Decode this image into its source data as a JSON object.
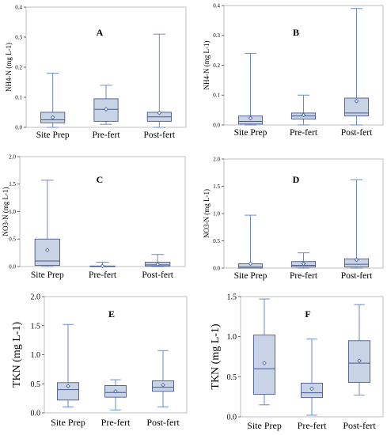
{
  "colors": {
    "box_fill": "#c9d3e6",
    "box_stroke": "#4a5a8a",
    "whisker": "#6a8ad0",
    "mean_marker": "#3a5ab0",
    "frame": "#bfbfbf",
    "text": "#000000"
  },
  "chart_data": [
    {
      "panel": "A",
      "type": "box",
      "ylabel": "NH4-N (mg L-1)",
      "categories": [
        "Site Prep",
        "Pre-fert",
        "Post-fert"
      ],
      "ylim": [
        0,
        0.4
      ],
      "yticks": [
        "0.0",
        "0.1",
        "0.2",
        "0.3",
        "0.4"
      ],
      "boxes": [
        {
          "min": 0.0,
          "q1": 0.015,
          "median": 0.025,
          "q3": 0.05,
          "max": 0.18,
          "mean": 0.033
        },
        {
          "min": 0.01,
          "q1": 0.02,
          "median": 0.06,
          "q3": 0.095,
          "max": 0.14,
          "mean": 0.06
        },
        {
          "min": 0.0,
          "q1": 0.02,
          "median": 0.035,
          "q3": 0.05,
          "max": 0.31,
          "mean": 0.048
        }
      ]
    },
    {
      "panel": "B",
      "type": "box",
      "ylabel": "NH4-N (mg L-1)",
      "categories": [
        "Site Prep",
        "Pre-fert",
        "Post-fert"
      ],
      "ylim": [
        0,
        0.4
      ],
      "yticks": [
        "0.0",
        "0.1",
        "0.2",
        "0.3",
        "0.4"
      ],
      "boxes": [
        {
          "min": 0.0,
          "q1": 0.003,
          "median": 0.012,
          "q3": 0.03,
          "max": 0.24,
          "mean": 0.023
        },
        {
          "min": 0.0,
          "q1": 0.02,
          "median": 0.03,
          "q3": 0.04,
          "max": 0.1,
          "mean": 0.033
        },
        {
          "min": 0.0,
          "q1": 0.03,
          "median": 0.04,
          "q3": 0.09,
          "max": 0.39,
          "mean": 0.08
        }
      ]
    },
    {
      "panel": "C",
      "type": "box",
      "ylabel": "NO3-N (mg L-1)",
      "categories": [
        "Site Prep",
        "Pre-fert",
        "Post-fert"
      ],
      "ylim": [
        0,
        2.0
      ],
      "yticks": [
        "0.0",
        "0.5",
        "1.0",
        "1.5",
        "2.0"
      ],
      "boxes": [
        {
          "min": 0.0,
          "q1": 0.02,
          "median": 0.1,
          "q3": 0.5,
          "max": 1.57,
          "mean": 0.3
        },
        {
          "min": 0.0,
          "q1": 0.0,
          "median": 0.0,
          "q3": 0.01,
          "max": 0.08,
          "mean": 0.01
        },
        {
          "min": 0.0,
          "q1": 0.01,
          "median": 0.03,
          "q3": 0.08,
          "max": 0.22,
          "mean": 0.04
        }
      ]
    },
    {
      "panel": "D",
      "type": "box",
      "ylabel": "NO3-N (mg L-1)",
      "categories": [
        "Site Prep",
        "Pre-fert",
        "Post-fert"
      ],
      "ylim": [
        0,
        2.0
      ],
      "yticks": [
        "0.0",
        "0.5",
        "1.0",
        "1.5",
        "2.0"
      ],
      "boxes": [
        {
          "min": 0.0,
          "q1": 0.0,
          "median": 0.02,
          "q3": 0.08,
          "max": 0.97,
          "mean": 0.08
        },
        {
          "min": 0.0,
          "q1": 0.02,
          "median": 0.05,
          "q3": 0.12,
          "max": 0.28,
          "mean": 0.08
        },
        {
          "min": 0.0,
          "q1": 0.02,
          "median": 0.07,
          "q3": 0.17,
          "max": 1.62,
          "mean": 0.15
        }
      ]
    },
    {
      "panel": "E",
      "type": "box",
      "ylabel": "TKN (mg L-1)",
      "categories": [
        "Site Prep",
        "Pre-fert",
        "Post-fert"
      ],
      "ylim": [
        0,
        2.0
      ],
      "yticks": [
        "0.0",
        "0.5",
        "1.0",
        "1.5",
        "2.0"
      ],
      "boxes": [
        {
          "min": 0.1,
          "q1": 0.22,
          "median": 0.4,
          "q3": 0.52,
          "max": 1.52,
          "mean": 0.46
        },
        {
          "min": 0.05,
          "q1": 0.27,
          "median": 0.35,
          "q3": 0.47,
          "max": 0.57,
          "mean": 0.37
        },
        {
          "min": 0.1,
          "q1": 0.37,
          "median": 0.44,
          "q3": 0.55,
          "max": 1.07,
          "mean": 0.48
        }
      ]
    },
    {
      "panel": "F",
      "type": "box",
      "ylabel": "TKN (mg L-1)",
      "categories": [
        "Site Prep",
        "Pre-fert",
        "Post-fert"
      ],
      "ylim": [
        0,
        1.5
      ],
      "yticks": [
        "0.0",
        "0.5",
        "1.0",
        "1.5"
      ],
      "boxes": [
        {
          "min": 0.15,
          "q1": 0.28,
          "median": 0.6,
          "q3": 1.02,
          "max": 1.47,
          "mean": 0.67
        },
        {
          "min": 0.02,
          "q1": 0.24,
          "median": 0.3,
          "q3": 0.42,
          "max": 0.97,
          "mean": 0.35
        },
        {
          "min": 0.27,
          "q1": 0.43,
          "median": 0.67,
          "q3": 0.95,
          "max": 1.4,
          "mean": 0.7
        }
      ]
    }
  ]
}
